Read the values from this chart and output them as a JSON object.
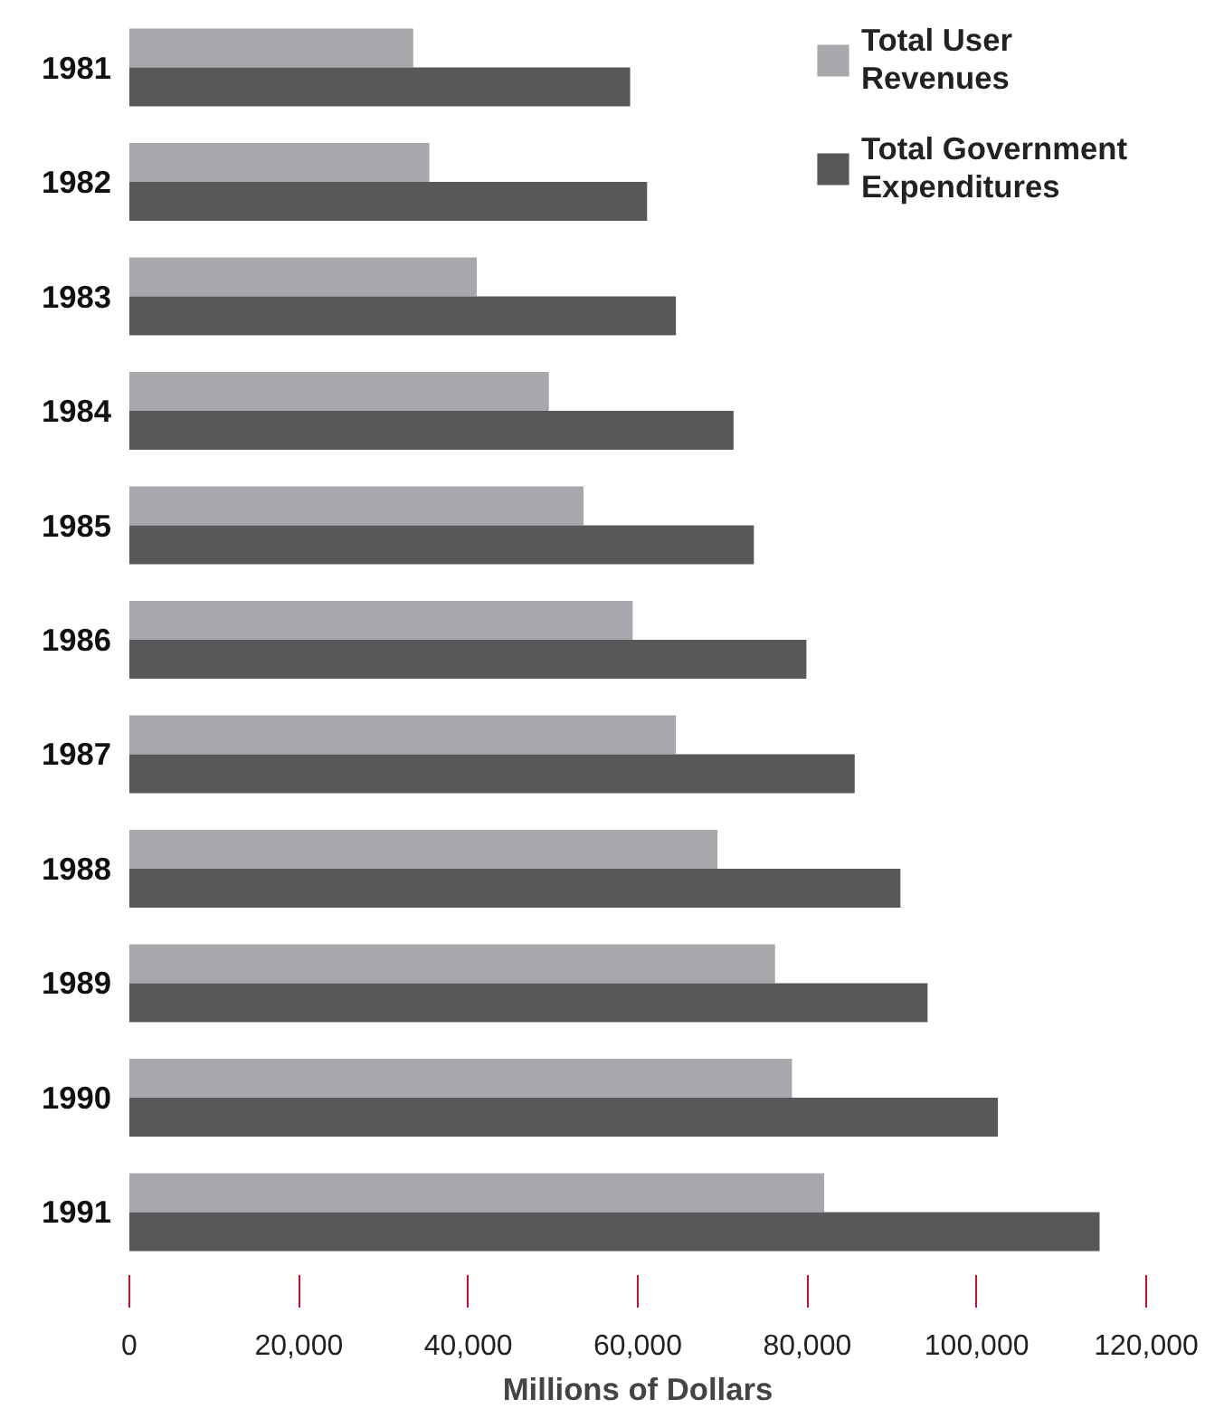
{
  "chart_data": {
    "type": "bar",
    "orientation": "horizontal",
    "xlabel": "Millions of Dollars",
    "categories": [
      "1981",
      "1982",
      "1983",
      "1984",
      "1985",
      "1986",
      "1987",
      "1988",
      "1989",
      "1990",
      "1991"
    ],
    "series": [
      {
        "name": "Total User Revenues",
        "color": "#a7a8ab",
        "values": [
          33500,
          35400,
          41000,
          49500,
          53600,
          59400,
          64500,
          69400,
          76200,
          78200,
          82000
        ]
      },
      {
        "name": "Total Government Expenditures",
        "color": "#58585a",
        "values": [
          59100,
          61100,
          64500,
          71300,
          73700,
          79900,
          85600,
          91000,
          94200,
          102500,
          114500
        ]
      }
    ],
    "xlim": [
      0,
      120000
    ],
    "xticks": [
      0,
      {
        "value": 20000,
        "label": "20,000"
      },
      {
        "value": 40000,
        "label": "40,000"
      },
      {
        "value": 60000,
        "label": "60,000"
      },
      {
        "value": 80000,
        "label": "80,000"
      },
      {
        "value": 100000,
        "label": "100,000"
      },
      {
        "value": 120000,
        "label": "120,000"
      }
    ],
    "grid": false,
    "legend": "top right"
  }
}
